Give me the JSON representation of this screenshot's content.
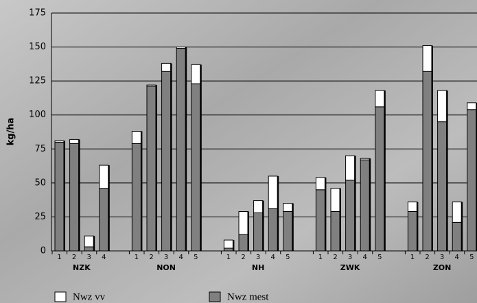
{
  "chart_data": {
    "type": "stacked-bar",
    "y_label": "kg/ha",
    "groups": [
      {
        "label": "NZK",
        "categories": [
          "1",
          "2",
          "3",
          "4"
        ]
      },
      {
        "label": "NON",
        "categories": [
          "1",
          "2",
          "3",
          "4",
          "5"
        ]
      },
      {
        "label": "NH",
        "categories": [
          "1",
          "2",
          "3",
          "4",
          "5"
        ]
      },
      {
        "label": "ZWK",
        "categories": [
          "1",
          "2",
          "3",
          "4",
          "5"
        ]
      },
      {
        "label": "ZON",
        "categories": [
          "1",
          "2",
          "3",
          "4",
          "5"
        ]
      }
    ],
    "series": [
      {
        "name": "Nwz vv",
        "color": "#ffffff",
        "values": [
          1,
          3,
          8,
          17,
          9,
          1,
          6,
          1,
          14,
          6,
          17,
          9,
          24,
          6,
          9,
          17,
          18,
          1,
          12,
          7,
          19,
          23,
          15,
          5
        ]
      },
      {
        "name": "Nwz mest",
        "color": "#808080",
        "values": [
          80,
          79,
          3,
          46,
          79,
          121,
          132,
          149,
          123,
          2,
          12,
          28,
          31,
          29,
          45,
          29,
          52,
          67,
          106,
          29,
          132,
          95,
          21,
          104
        ]
      }
    ],
    "ylim": [
      0,
      175
    ],
    "yticks": [
      0,
      25,
      50,
      75,
      100,
      125,
      150,
      175
    ],
    "grid": true
  }
}
